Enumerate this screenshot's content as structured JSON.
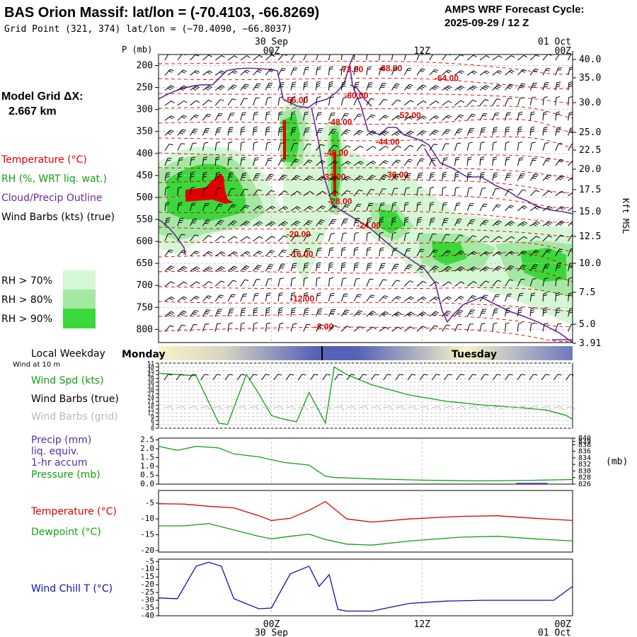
{
  "header": {
    "title": "BAS Orion Massif:  lat/lon = (-70.4103, -66.8269)",
    "grid_point": "Grid Point (321, 374) lat/lon = (−70.4090, −66.8037)",
    "cycle_line1": "AMPS WRF Forecast Cycle:",
    "cycle_line2": "2025-09-29 / 12  Z"
  },
  "time_axis": {
    "ticks_top": [
      {
        "hour": 12,
        "line1": "30 Sep",
        "line2": "00Z"
      },
      {
        "hour": 24,
        "line1": "",
        "line2": "12Z"
      },
      {
        "hour": 36,
        "line1": "01 Oct",
        "line2": "00Z"
      }
    ],
    "ticks_bottom": [
      {
        "hour": 12,
        "line1": "00Z",
        "line2": "30 Sep"
      },
      {
        "hour": 24,
        "line1": "12Z",
        "line2": ""
      },
      {
        "hour": 36,
        "line1": "00Z",
        "line2": "01 Oct"
      }
    ],
    "start_hour": 3,
    "end_hour": 36
  },
  "left_labels": {
    "model_grid_l1": "Model Grid ΔX:",
    "model_grid_l2": "2.667 km",
    "temperature": "Temperature (°C)",
    "rh": "RH (%, WRT liq. wat.)",
    "cloud": "Cloud/Precip Outline",
    "wind_barbs": "Wind Barbs (kts) (true)",
    "rh_legend": [
      "RH > 70%",
      "RH > 80%",
      "RH > 90%"
    ],
    "local_weekday": "Local Weekday",
    "wind_at": "Wind at 10 m",
    "wind_spd": "Wind Spd (kts)",
    "wind_barbs_true": "Wind Barbs (true)",
    "wind_barbs_grid": "Wind Barbs (grid)",
    "precip_l1": "Precip (mm)",
    "precip_l2": "liq. equiv.",
    "precip_l3": "1-hr accum",
    "pressure": "Pressure (mb)",
    "temp2": "Temperature (°C)",
    "dewpoint": "Dewpoint (°C)",
    "windchill": "Wind Chill T (°C)"
  },
  "colors": {
    "temperature": "#e00000",
    "rh": "#10a010",
    "cloud": "#6a2a9a",
    "wind_barbs": "#000000",
    "wind_barbs_grid": "#b8b8b8",
    "rh70": "#d6f7d6",
    "rh80": "#a4e8a4",
    "rh90": "#3ad83a",
    "windchill": "#1010b0",
    "precip": "#5a2aa0"
  },
  "chart_data": [
    {
      "type": "heatmap",
      "title": "Time-height cross section",
      "ylabel": "P (mb)",
      "ylabel_right": "Kft MSL",
      "pressure_ticks": [
        200,
        250,
        300,
        350,
        400,
        450,
        500,
        550,
        600,
        650,
        700,
        750,
        800
      ],
      "kft_ticks": [
        40.0,
        35.0,
        30.0,
        25.0,
        22.5,
        20.0,
        17.5,
        15.0,
        12.5,
        10.0,
        7.5,
        5.0,
        3.91
      ],
      "kft_labels": [
        "40.0",
        "35.0",
        "30.0",
        "25.0",
        "22.5",
        "20.0",
        "17.5",
        "15.0",
        "12.5",
        "10.0",
        "7.5",
        "5.0",
        "3.91"
      ],
      "ylim": [
        175,
        830
      ],
      "temperature_labels": [
        {
          "hour": 17.4,
          "p": 215,
          "text": "-72.00"
        },
        {
          "hour": 20.5,
          "p": 213,
          "text": "-68.00"
        },
        {
          "hour": 25.0,
          "p": 235,
          "text": "-64.00"
        },
        {
          "hour": 17.8,
          "p": 275,
          "text": "-60.00"
        },
        {
          "hour": 13.0,
          "p": 285,
          "text": "-56.00"
        },
        {
          "hour": 22.0,
          "p": 320,
          "text": "-52.00"
        },
        {
          "hour": 16.5,
          "p": 335,
          "text": "-48.00"
        },
        {
          "hour": 20.3,
          "p": 380,
          "text": "-44.00"
        },
        {
          "hour": 16.2,
          "p": 405,
          "text": "-40.00"
        },
        {
          "hour": 21.0,
          "p": 455,
          "text": "-36.00"
        },
        {
          "hour": 16.0,
          "p": 460,
          "text": "-32.00"
        },
        {
          "hour": 16.5,
          "p": 515,
          "text": "-28.00"
        },
        {
          "hour": 18.8,
          "p": 570,
          "text": "-24.00"
        },
        {
          "hour": 13.2,
          "p": 590,
          "text": "-20.00"
        },
        {
          "hour": 13.4,
          "p": 635,
          "text": "-16.00"
        },
        {
          "hour": 13.5,
          "p": 737,
          "text": "-12.00"
        },
        {
          "hour": 15.4,
          "p": 800,
          "text": "-8.00"
        }
      ],
      "legend": [
        "RH > 70%",
        "RH > 80%",
        "RH > 90%"
      ]
    },
    {
      "type": "line",
      "title": "10 m wind speed",
      "ylabel": "Wind Spd (kts)",
      "y_ticks": [
        0,
        3,
        6,
        9,
        12,
        15,
        18,
        21,
        24,
        27,
        30,
        33,
        36,
        39,
        42,
        45,
        48,
        51
      ],
      "ylim": [
        0,
        51
      ],
      "x": [
        3,
        4.5,
        6,
        7.8,
        8.5,
        10,
        11,
        12,
        12.6,
        14,
        15,
        16.3,
        17,
        18,
        20,
        23,
        26,
        29,
        32,
        34,
        35.5,
        36
      ],
      "series": [
        {
          "name": "Wind Spd",
          "values": [
            43,
            42,
            41,
            4,
            3,
            42,
            27,
            10,
            8,
            5,
            28,
            4,
            48,
            42,
            34,
            26,
            21,
            18,
            16,
            14,
            10,
            7
          ]
        }
      ]
    },
    {
      "type": "line",
      "title": "Precipitation and surface pressure",
      "ylabel": "Precip (mm)",
      "y_ticks": [
        0.0,
        0.5,
        1.0,
        1.5,
        2.0,
        2.5
      ],
      "ylim": [
        0.0,
        2.6
      ],
      "y2_ticks": [
        826,
        828,
        830,
        832,
        834,
        836,
        838,
        839,
        840
      ],
      "y2lim": [
        826,
        840
      ],
      "y2label": "(mb)",
      "x": [
        3,
        4.5,
        6,
        7.8,
        9,
        11,
        13,
        15,
        16.3,
        17,
        20,
        24,
        28,
        32,
        36
      ],
      "series": [
        {
          "name": "Pressure (mb)",
          "axis": "y2",
          "values": [
            837.5,
            836.3,
            837.5,
            837.0,
            835.2,
            834.3,
            832.6,
            831.8,
            828.4,
            828.0,
            827.6,
            827.2,
            827.0,
            827.1,
            827.4
          ]
        },
        {
          "name": "Precip (mm)",
          "axis": "y",
          "x": [
            31.5,
            34
          ],
          "values": [
            0.02,
            0.02
          ]
        }
      ]
    },
    {
      "type": "line",
      "title": "Temperature and dewpoint",
      "y_ticks": [
        -5,
        -10,
        -15,
        -20
      ],
      "ylim": [
        -20.5,
        -1
      ],
      "x": [
        3,
        5,
        7,
        9,
        11,
        12,
        13.5,
        15,
        16.3,
        18,
        20,
        23,
        27,
        30,
        33,
        36
      ],
      "series": [
        {
          "name": "Temperature (°C)",
          "values": [
            -5.2,
            -5.3,
            -6.0,
            -6.5,
            -9.0,
            -10.5,
            -9.8,
            -7.3,
            -4.5,
            -10.0,
            -11.0,
            -10.0,
            -9.2,
            -9.0,
            -9.8,
            -10.5
          ]
        },
        {
          "name": "Dewpoint (°C)",
          "values": [
            -12.2,
            -12.2,
            -11.5,
            -13.5,
            -15.5,
            -16.3,
            -15.5,
            -14.8,
            -16.5,
            -18.0,
            -18.3,
            -17.0,
            -15.8,
            -15.5,
            -16.3,
            -17.0
          ]
        }
      ]
    },
    {
      "type": "line",
      "title": "Wind chill",
      "ylabel": "Wind Chill T (°C)",
      "y_ticks": [
        -5,
        -10,
        -15,
        -20,
        -25,
        -30,
        -35,
        -40
      ],
      "ylim": [
        -40,
        -3.5
      ],
      "x": [
        3,
        4.5,
        6,
        7,
        8,
        9,
        11,
        12,
        13.5,
        15,
        15.8,
        16.6,
        17.3,
        18,
        20,
        23,
        26,
        29,
        32,
        34.5,
        36
      ],
      "series": [
        {
          "name": "Wind Chill T",
          "values": [
            -28.5,
            -29,
            -8,
            -5.5,
            -8,
            -29,
            -35.5,
            -35,
            -13,
            -8,
            -21,
            -13.5,
            -36,
            -37,
            -37,
            -32,
            -30.5,
            -30,
            -30,
            -30,
            -21
          ]
        }
      ]
    }
  ],
  "weekday_bar": {
    "day1": "Monday",
    "day2": "Tuesday"
  }
}
